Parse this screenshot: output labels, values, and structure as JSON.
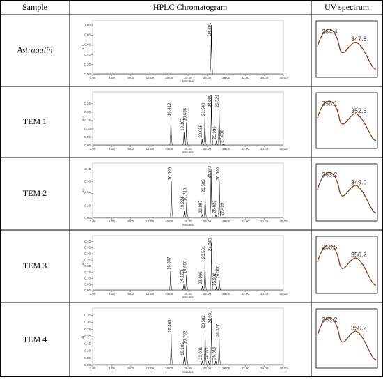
{
  "header": {
    "sample": "Sample",
    "chromatogram": "HPLC Chromatogram",
    "uv": "UV spectrum"
  },
  "axis": {
    "x_label": "Minutes",
    "y_label": "AU",
    "x_ticks": [
      {
        "value": 0,
        "label": "0.00"
      },
      {
        "value": 4,
        "label": "4.00"
      },
      {
        "value": 8,
        "label": "8.00"
      },
      {
        "value": 12,
        "label": "12.00"
      },
      {
        "value": 16,
        "label": "16.00"
      },
      {
        "value": 20,
        "label": "20.00"
      },
      {
        "value": 24,
        "label": "24.00"
      },
      {
        "value": 28,
        "label": "28.00"
      },
      {
        "value": 32,
        "label": "32.00"
      },
      {
        "value": 36,
        "label": "36.00"
      },
      {
        "value": 40,
        "label": "40.00"
      }
    ],
    "xlim": [
      0,
      40
    ]
  },
  "rows": [
    {
      "sample": "Astragalin",
      "ylim": [
        0,
        1.1
      ],
      "y_ticks": [
        {
          "value": 0,
          "label": "0.00"
        },
        {
          "value": 0.2,
          "label": "0.20"
        },
        {
          "value": 0.4,
          "label": "0.40"
        },
        {
          "value": 0.6,
          "label": "0.60"
        },
        {
          "value": 0.8,
          "label": "0.80"
        },
        {
          "value": 1,
          "label": "1.00"
        }
      ],
      "peaks": [
        {
          "rt": "24.891",
          "height": 1.0
        }
      ],
      "uv": [
        "264.4",
        "347.8"
      ]
    },
    {
      "sample": "TEM 1",
      "ylim": [
        0,
        0.32
      ],
      "y_ticks": [
        {
          "value": 0,
          "label": "0.00"
        },
        {
          "value": 0.05,
          "label": "0.05"
        },
        {
          "value": 0.1,
          "label": "0.10"
        },
        {
          "value": 0.15,
          "label": "0.15"
        },
        {
          "value": 0.2,
          "label": "0.20"
        },
        {
          "value": 0.25,
          "label": "0.25"
        }
      ],
      "peaks": [
        {
          "rt": "16.419",
          "height": 0.17
        },
        {
          "rt": "19.167",
          "height": 0.08
        },
        {
          "rt": "19.685",
          "height": 0.14
        },
        {
          "rt": "22.956",
          "height": 0.04
        },
        {
          "rt": "23.540",
          "height": 0.17
        },
        {
          "rt": "24.909",
          "height": 0.3
        },
        {
          "rt": "25.936",
          "height": 0.03
        },
        {
          "rt": "26.521",
          "height": 0.22
        },
        {
          "rt": "27.456",
          "height": 0.01
        }
      ],
      "uv": [
        "256.1",
        "352.6"
      ]
    },
    {
      "sample": "TEM 2",
      "ylim": [
        0,
        0.45
      ],
      "y_ticks": [
        {
          "value": 0,
          "label": "0.00"
        },
        {
          "value": 0.1,
          "label": "0.10"
        },
        {
          "value": 0.2,
          "label": "0.20"
        },
        {
          "value": 0.3,
          "label": "0.30"
        },
        {
          "value": 0.4,
          "label": "0.40"
        }
      ],
      "peaks": [
        {
          "rt": "16.505",
          "height": 0.3
        },
        {
          "rt": "19.224",
          "height": 0.06
        },
        {
          "rt": "19.710",
          "height": 0.13
        },
        {
          "rt": "22.997",
          "height": 0.03
        },
        {
          "rt": "23.585",
          "height": 0.2
        },
        {
          "rt": "24.842",
          "height": 0.4
        },
        {
          "rt": "25.822",
          "height": 0.03
        },
        {
          "rt": "26.560",
          "height": 0.3
        },
        {
          "rt": "27.499",
          "height": 0.01
        }
      ],
      "uv": [
        "263.2",
        "349.0"
      ]
    },
    {
      "sample": "TEM 3",
      "ylim": [
        0,
        0.45
      ],
      "y_ticks": [
        {
          "value": 0,
          "label": "0.00"
        },
        {
          "value": 0.05,
          "label": "0.05"
        },
        {
          "value": 0.1,
          "label": "0.10"
        },
        {
          "value": 0.15,
          "label": "0.15"
        },
        {
          "value": 0.2,
          "label": "0.20"
        },
        {
          "value": 0.25,
          "label": "0.25"
        },
        {
          "value": 0.3,
          "label": "0.30"
        },
        {
          "value": 0.35,
          "label": "0.35"
        },
        {
          "value": 0.4,
          "label": "0.40"
        }
      ],
      "peaks": [
        {
          "rt": "16.347",
          "height": 0.16
        },
        {
          "rt": "19.123",
          "height": 0.05
        },
        {
          "rt": "19.690",
          "height": 0.13
        },
        {
          "rt": "23.006",
          "height": 0.04
        },
        {
          "rt": "23.561",
          "height": 0.25
        },
        {
          "rt": "24.940",
          "height": 0.4
        },
        {
          "rt": "25.932",
          "height": 0.03
        },
        {
          "rt": "26.550",
          "height": 0.09
        }
      ],
      "uv": [
        "258.5",
        "350.2"
      ]
    },
    {
      "sample": "TEM 4",
      "ylim": [
        0,
        0.4
      ],
      "y_ticks": [
        {
          "value": 0,
          "label": "0.00"
        },
        {
          "value": 0.05,
          "label": "0.05"
        },
        {
          "value": 0.1,
          "label": "0.10"
        },
        {
          "value": 0.15,
          "label": "0.15"
        },
        {
          "value": 0.2,
          "label": "0.20"
        },
        {
          "value": 0.25,
          "label": "0.25"
        },
        {
          "value": 0.3,
          "label": "0.30"
        },
        {
          "value": 0.35,
          "label": "0.35"
        }
      ],
      "peaks": [
        {
          "rt": "16.465",
          "height": 0.22
        },
        {
          "rt": "19.185",
          "height": 0.06
        },
        {
          "rt": "19.702",
          "height": 0.14
        },
        {
          "rt": "23.001",
          "height": 0.03
        },
        {
          "rt": "23.582",
          "height": 0.25
        },
        {
          "rt": "24.271",
          "height": 0.03
        },
        {
          "rt": "24.931",
          "height": 0.33
        },
        {
          "rt": "25.815",
          "height": 0.03
        },
        {
          "rt": "26.527",
          "height": 0.19
        }
      ],
      "uv": [
        "263.2",
        "350.2"
      ]
    }
  ]
}
